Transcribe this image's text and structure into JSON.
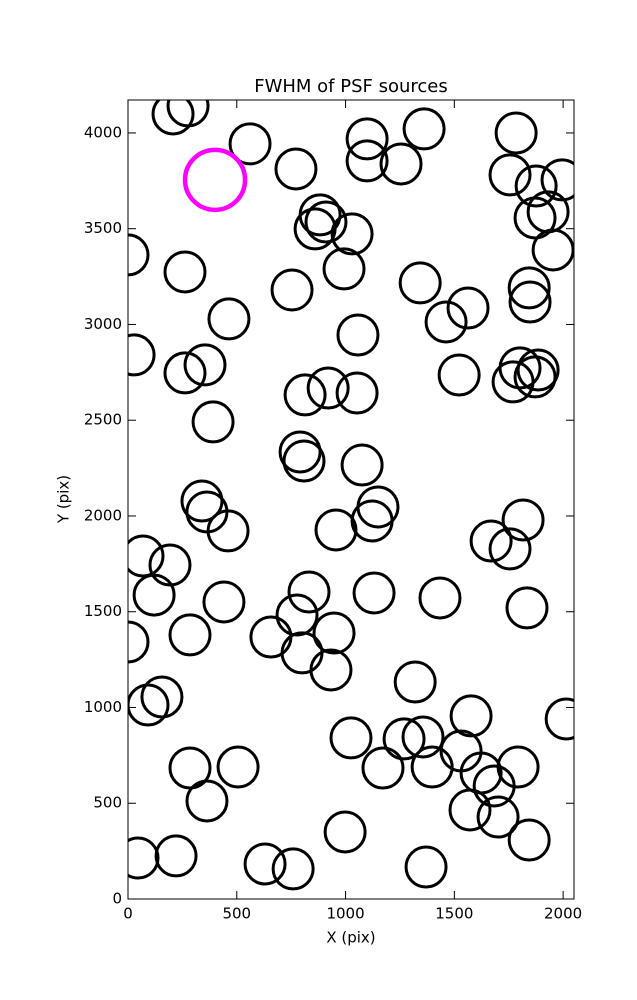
{
  "chart_data": {
    "type": "scatter",
    "title": "FWHM of PSF sources",
    "x_label": "X (pix)",
    "y_label": "Y (pix)",
    "xlim": [
      0,
      2050
    ],
    "ylim": [
      0,
      4172
    ],
    "xticks": [
      0,
      500,
      1000,
      1500,
      2000
    ],
    "yticks": [
      0,
      500,
      1000,
      1500,
      2000,
      2500,
      3000,
      3500,
      4000
    ],
    "series": [
      {
        "color": "#000000",
        "x": [
          207,
          276,
          561,
          772,
          1099,
          1099,
          1255,
          1361,
          1784,
          1756,
          1876,
          1995,
          1871,
          1931,
          1954,
          0,
          262,
          883,
          910,
          860,
          1030,
          993,
          754,
          464,
          1343,
          1563,
          1462,
          1844,
          1848,
          1057,
          28,
          354,
          262,
          1522,
          1802,
          1885,
          1770,
          1871,
          920,
          814,
          1053,
          391,
          791,
          809,
          1076,
          340,
          363,
          460,
          1149,
          1122,
          956,
          1816,
          1669,
          1756,
          69,
          193,
          120,
          832,
          1131,
          1434,
          1834,
          441,
          777,
          947,
          657,
          285,
          0,
          800,
          933,
          1320,
          156,
          92,
          2014,
          1577,
          1025,
          1269,
          1356,
          1531,
          1172,
          1398,
          1793,
          285,
          506,
          1623,
          1683,
          363,
          1572,
          1701,
          1844,
          998,
          221,
          46,
          630,
          759,
          1370
        ],
        "y": [
          4099,
          4141,
          3943,
          3812,
          3969,
          3854,
          3838,
          4021,
          4000,
          3781,
          3723,
          3755,
          3556,
          3588,
          3389,
          3363,
          3274,
          3572,
          3535,
          3499,
          3473,
          3290,
          3180,
          3029,
          3217,
          3086,
          3013,
          3191,
          3117,
          2945,
          2841,
          2789,
          2747,
          2736,
          2773,
          2762,
          2700,
          2726,
          2668,
          2632,
          2642,
          2491,
          2334,
          2287,
          2266,
          2078,
          2021,
          1922,
          2047,
          1974,
          1927,
          1979,
          1869,
          1828,
          1791,
          1744,
          1587,
          1603,
          1598,
          1572,
          1520,
          1551,
          1483,
          1389,
          1368,
          1379,
          1342,
          1285,
          1196,
          1133,
          1055,
          1013,
          940,
          956,
          841,
          836,
          846,
          773,
          684,
          689,
          689,
          684,
          689,
          658,
          590,
          512,
          465,
          428,
          308,
          350,
          225,
          214,
          183,
          157,
          167
        ]
      },
      {
        "color": "#ff00ff",
        "x": [
          400
        ],
        "y": [
          3755
        ]
      }
    ]
  }
}
